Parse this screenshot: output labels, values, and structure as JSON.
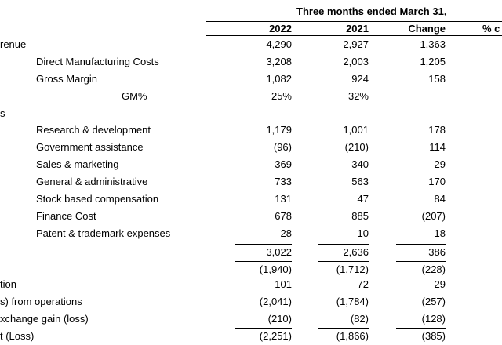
{
  "header": {
    "period": "Three months ended March 31,",
    "col_2022": "2022",
    "col_2021": "2021",
    "col_change": "Change",
    "col_pct": "% c"
  },
  "rows": [
    {
      "label": "renue",
      "v2022": "4,290",
      "v2021": "2,927",
      "change": "1,363"
    },
    {
      "label": "Direct Manufacturing Costs",
      "v2022": "3,208",
      "v2021": "2,003",
      "change": "1,205"
    },
    {
      "label": "Gross Margin",
      "v2022": "1,082",
      "v2021": "924",
      "change": "158"
    },
    {
      "label": "GM%",
      "v2022": "25%",
      "v2021": "32%",
      "change": ""
    },
    {
      "label": "s",
      "v2022": "",
      "v2021": "",
      "change": ""
    },
    {
      "label": "Research & development",
      "v2022": "1,179",
      "v2021": "1,001",
      "change": "178"
    },
    {
      "label": "Government assistance",
      "v2022": "(96)",
      "v2021": "(210)",
      "change": "114"
    },
    {
      "label": "Sales & marketing",
      "v2022": "369",
      "v2021": "340",
      "change": "29"
    },
    {
      "label": "General & administrative",
      "v2022": "733",
      "v2021": "563",
      "change": "170"
    },
    {
      "label": "Stock based compensation",
      "v2022": "131",
      "v2021": "47",
      "change": "84"
    },
    {
      "label": "Finance Cost",
      "v2022": "678",
      "v2021": "885",
      "change": "(207)"
    },
    {
      "label": "Patent & trademark expenses",
      "v2022": "28",
      "v2021": "10",
      "change": "18"
    },
    {
      "label": "",
      "v2022": "3,022",
      "v2021": "2,636",
      "change": "386"
    },
    {
      "label": "",
      "v2022": "(1,940)",
      "v2021": "(1,712)",
      "change": "(228)"
    },
    {
      "label": "tion",
      "v2022": "101",
      "v2021": "72",
      "change": "29"
    },
    {
      "label": "s) from operations",
      "v2022": "(2,041)",
      "v2021": "(1,784)",
      "change": "(257)"
    },
    {
      "label": "xchange gain (loss)",
      "v2022": "(210)",
      "v2021": "(82)",
      "change": "(128)"
    },
    {
      "label": "t (Loss)",
      "v2022": "(2,251)",
      "v2021": "(1,866)",
      "change": "(385)"
    }
  ]
}
